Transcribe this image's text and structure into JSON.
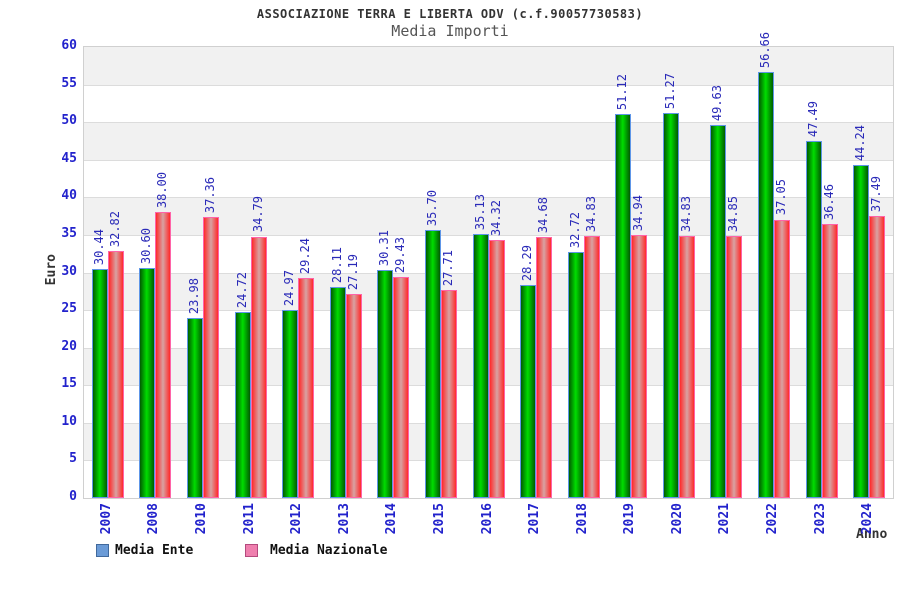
{
  "title": "ASSOCIAZIONE TERRA E LIBERTA ODV (c.f.90057730583)",
  "subtitle": "Media Importi",
  "axis": {
    "y_title": "Euro",
    "x_title": "Anno"
  },
  "legend": {
    "ente_label": "Media Ente",
    "nazionale_label": "Media Nazionale"
  },
  "colors": {
    "tick_label": "#2222cc",
    "value_label": "#2a2ab8",
    "band_gray": "#f1f1f1",
    "gridline": "#dcdcdc",
    "plot_border": "#d0d0d0",
    "green_bar_edge": "#015c01",
    "green_bar_center": "#00dd00",
    "green_bar_outline": "#5e96e8",
    "red_bar_edge": "#ff2a2a",
    "red_bar_center": "#d8a2a2",
    "red_bar_outline": "#ff63a8",
    "legend_ente_swatch": "#6b9bd7",
    "legend_nazionale_swatch": "#ef7fae"
  },
  "chart_data": {
    "type": "bar",
    "title": "ASSOCIAZIONE TERRA E LIBERTA ODV (c.f.90057730583)",
    "subtitle": "Media Importi",
    "xlabel": "Anno",
    "ylabel": "Euro",
    "ylim": [
      0,
      60
    ],
    "ytick_step": 5,
    "yticks": [
      0,
      5,
      10,
      15,
      20,
      25,
      30,
      35,
      40,
      45,
      50,
      55,
      60
    ],
    "grid": true,
    "alternating_bands": true,
    "legend_position": "bottom-left",
    "value_labels": "rotated-90-two-decimals",
    "categories": [
      "2007",
      "2008",
      "2010",
      "2011",
      "2012",
      "2013",
      "2014",
      "2015",
      "2016",
      "2017",
      "2018",
      "2019",
      "2020",
      "2021",
      "2022",
      "2023",
      "2024"
    ],
    "series": [
      {
        "name": "Media Ente",
        "color_key": "green",
        "values": [
          30.44,
          30.6,
          23.98,
          24.72,
          24.97,
          28.11,
          30.31,
          35.7,
          35.13,
          28.29,
          32.72,
          51.12,
          51.27,
          49.63,
          56.66,
          47.49,
          44.24
        ]
      },
      {
        "name": "Media Nazionale",
        "color_key": "red",
        "values": [
          32.82,
          38.0,
          37.36,
          34.79,
          29.24,
          27.19,
          29.43,
          27.71,
          34.32,
          34.68,
          34.83,
          34.94,
          34.83,
          34.85,
          37.05,
          36.46,
          37.49
        ]
      }
    ]
  }
}
